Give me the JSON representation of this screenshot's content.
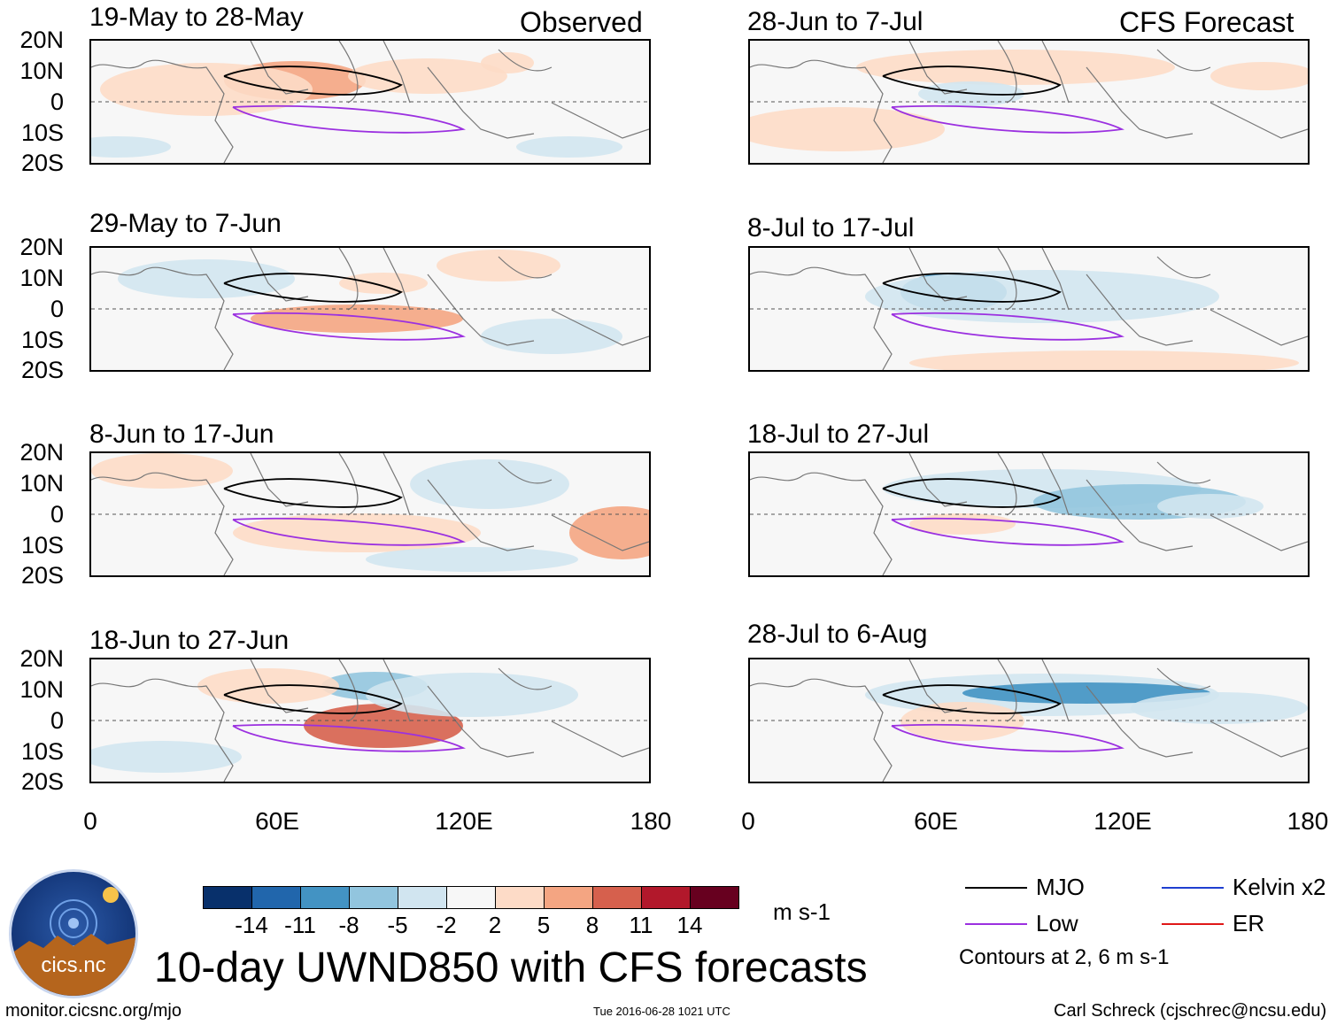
{
  "header": {
    "left_label": "Observed",
    "right_label": "CFS Forecast"
  },
  "y_axis_labels": [
    "20N",
    "10N",
    "0",
    "10S",
    "20S"
  ],
  "x_axis_labels": [
    "0",
    "60E",
    "120E",
    "180"
  ],
  "panels": {
    "observed": [
      {
        "title": "19-May to 28-May"
      },
      {
        "title": "29-May to 7-Jun"
      },
      {
        "title": "8-Jun to 17-Jun"
      },
      {
        "title": "18-Jun to 27-Jun"
      }
    ],
    "forecast": [
      {
        "title": "28-Jun to 7-Jul"
      },
      {
        "title": "8-Jul to 17-Jul"
      },
      {
        "title": "18-Jul to 27-Jul"
      },
      {
        "title": "28-Jul to 6-Aug"
      }
    ]
  },
  "colorbar": {
    "colors": [
      "#08306b",
      "#2166ac",
      "#4393c3",
      "#92c5de",
      "#d1e5f0",
      "#f7f7f7",
      "#fddbc7",
      "#f4a582",
      "#d6604d",
      "#b2182b",
      "#67001f"
    ],
    "labels": [
      "-14",
      "-11",
      "-8",
      "-5",
      "-2",
      "2",
      "5",
      "8",
      "11",
      "14"
    ],
    "units": "m s-1"
  },
  "legend": {
    "items": [
      {
        "label": "MJO",
        "color": "#000000"
      },
      {
        "label": "Kelvin x2",
        "color": "#1f3fd0"
      },
      {
        "label": "Low",
        "color": "#9b30e0"
      },
      {
        "label": "ER",
        "color": "#e01818"
      }
    ],
    "note": "Contours at 2, 6 m s-1"
  },
  "title": "10-day UWND850 with CFS forecasts",
  "logo_text": "cics.nc",
  "footer": {
    "url": "monitor.cicsnc.org/mjo",
    "timestamp": "Tue 2016-06-28 1021 UTC",
    "credit": "Carl Schreck (cjschrec@ncsu.edu)"
  }
}
